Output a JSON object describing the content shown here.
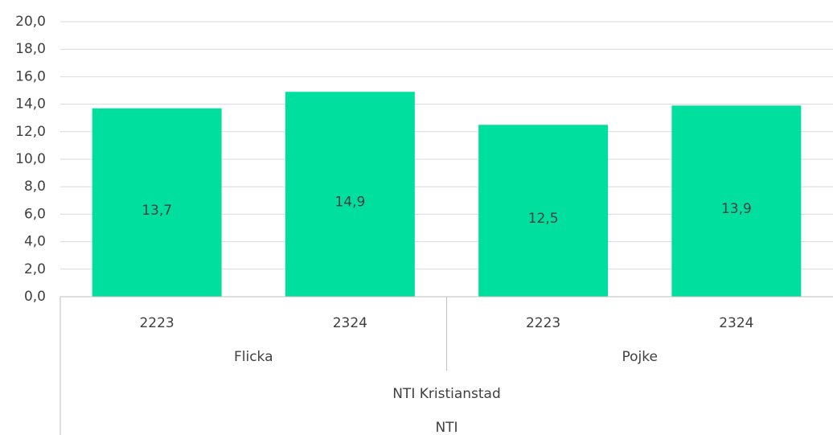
{
  "chart_data": {
    "type": "bar",
    "categories": [
      "2223",
      "2324",
      "2223",
      "2324"
    ],
    "group_levels": [
      [
        "Flicka",
        "Pojke"
      ],
      [
        "NTI Kristianstad"
      ],
      [
        "NTI"
      ]
    ],
    "values": [
      13.7,
      14.9,
      12.5,
      13.9
    ],
    "value_labels": [
      "13,7",
      "14,9",
      "12,5",
      "13,9"
    ],
    "color": "#01df9f",
    "ylim": [
      0,
      20
    ],
    "yticks": [
      {
        "value": 0,
        "label": "0,0"
      },
      {
        "value": 2,
        "label": "2,0"
      },
      {
        "value": 4,
        "label": "4,0"
      },
      {
        "value": 6,
        "label": "6,0"
      },
      {
        "value": 8,
        "label": "8,0"
      },
      {
        "value": 10,
        "label": "10,0"
      },
      {
        "value": 12,
        "label": "12,0"
      },
      {
        "value": 14,
        "label": "14,0"
      },
      {
        "value": 16,
        "label": "16,0"
      },
      {
        "value": 18,
        "label": "18,0"
      },
      {
        "value": 20,
        "label": "20,0"
      }
    ],
    "grid": true
  }
}
